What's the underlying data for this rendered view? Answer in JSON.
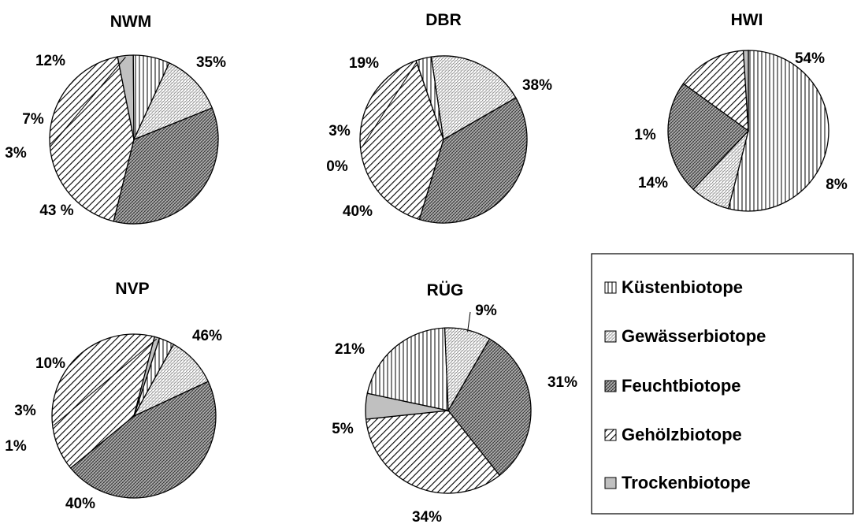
{
  "legend": {
    "items": [
      {
        "label": "Küstenbiotope",
        "pattern": "vertical-lines"
      },
      {
        "label": "Gewässerbiotope",
        "pattern": "fine-diagonal-dots"
      },
      {
        "label": "Feuchtbiotope",
        "pattern": "dense-crosshatch"
      },
      {
        "label": "Gehölzbiotope",
        "pattern": "diagonal-stripes"
      },
      {
        "label": "Trockenbiotope",
        "pattern": "solid-gray"
      }
    ],
    "colors": {
      "solid_gray": "#c0c0c0",
      "ink": "#000000"
    }
  },
  "chart_data": [
    {
      "type": "pie",
      "title": "NWM",
      "slices": [
        {
          "category": "Feuchtbiotope",
          "value": 35,
          "label": "35%"
        },
        {
          "category": "Gehölzbiotope",
          "value": 43,
          "label": "43 %"
        },
        {
          "category": "Trockenbiotope",
          "value": 3,
          "label": "3%"
        },
        {
          "category": "Küstenbiotope",
          "value": 7,
          "label": "7%"
        },
        {
          "category": "Gewässerbiotope",
          "value": 12,
          "label": "12%"
        }
      ]
    },
    {
      "type": "pie",
      "title": "DBR",
      "slices": [
        {
          "category": "Feuchtbiotope",
          "value": 38,
          "label": "38%"
        },
        {
          "category": "Gehölzbiotope",
          "value": 40,
          "label": "40%"
        },
        {
          "category": "Trockenbiotope",
          "value": 0,
          "label": "0%"
        },
        {
          "category": "Küstenbiotope",
          "value": 3,
          "label": "3%"
        },
        {
          "category": "Gewässerbiotope",
          "value": 19,
          "label": "19%"
        }
      ]
    },
    {
      "type": "pie",
      "title": "HWI",
      "slices": [
        {
          "category": "Küstenbiotope",
          "value": 54,
          "label": "54%"
        },
        {
          "category": "Gewässerbiotope",
          "value": 8,
          "label": "8%"
        },
        {
          "category": "Feuchtbiotope",
          "value": 23,
          "label": ""
        },
        {
          "category": "Gehölzbiotope",
          "value": 14,
          "label": "14%"
        },
        {
          "category": "Trockenbiotope",
          "value": 1,
          "label": "1%"
        }
      ]
    },
    {
      "type": "pie",
      "title": "NVP",
      "slices": [
        {
          "category": "Feuchtbiotope",
          "value": 46,
          "label": "46%"
        },
        {
          "category": "Gehölzbiotope",
          "value": 40,
          "label": "40%"
        },
        {
          "category": "Trockenbiotope",
          "value": 1,
          "label": "1%"
        },
        {
          "category": "Küstenbiotope",
          "value": 3,
          "label": "3%"
        },
        {
          "category": "Gewässerbiotope",
          "value": 10,
          "label": "10%"
        }
      ]
    },
    {
      "type": "pie",
      "title": "RÜG",
      "slices": [
        {
          "category": "Feuchtbiotope",
          "value": 31,
          "label": "31%"
        },
        {
          "category": "Gehölzbiotope",
          "value": 34,
          "label": "34%"
        },
        {
          "category": "Trockenbiotope",
          "value": 5,
          "label": "5%"
        },
        {
          "category": "Küstenbiotope",
          "value": 21,
          "label": "21%"
        },
        {
          "category": "Gewässerbiotope",
          "value": 9,
          "label": "9%"
        }
      ]
    }
  ]
}
